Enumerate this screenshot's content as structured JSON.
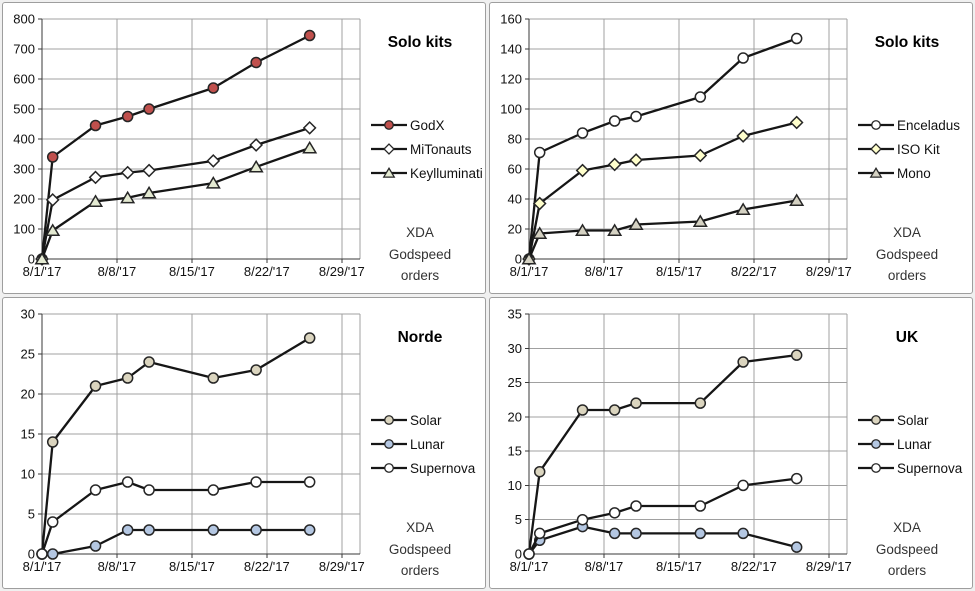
{
  "page": {
    "background": "#f0f0f0",
    "panel_background": "#ffffff",
    "panel_border": "#9e9e9e"
  },
  "style": {
    "gridline_color": "#a0a0a0",
    "axis_color": "#3a3a3a",
    "series_line_color": "#161616",
    "marker_outline_color": "#262626",
    "tick_label_color": "#111111"
  },
  "note": {
    "line1": "XDA",
    "line2": "Godspeed",
    "line3": "orders"
  },
  "chart_data": [
    {
      "type": "line",
      "title": "Solo kits",
      "annotation": "XDA Godspeed orders",
      "x_days": [
        1,
        2,
        6,
        9,
        11,
        17,
        21,
        26
      ],
      "x_axis": {
        "min": 1,
        "max": 30.7,
        "gridline_days": [
          8,
          15,
          22,
          29
        ],
        "tick_days": [
          1,
          8,
          15,
          22,
          29
        ],
        "tick_labels": [
          "8/1/'17",
          "8/8/'17",
          "8/15/'17",
          "8/22/'17",
          "8/29/'17"
        ]
      },
      "y_axis": {
        "min": 0,
        "max": 800,
        "step": 100
      },
      "series": [
        {
          "name": "GodX",
          "marker": "circle",
          "marker_fill": "#c0504d",
          "values": [
            0,
            340,
            445,
            475,
            500,
            570,
            655,
            745
          ]
        },
        {
          "name": "MiTonauts",
          "marker": "diamond",
          "marker_fill": "#ffffff",
          "values": [
            0,
            197,
            272,
            288,
            295,
            327,
            380,
            437
          ]
        },
        {
          "name": "Keylluminati",
          "marker": "triangle",
          "marker_fill": "#e4ead2",
          "values": [
            0,
            95,
            192,
            204,
            220,
            253,
            307,
            370
          ]
        }
      ]
    },
    {
      "type": "line",
      "title": "Solo kits",
      "annotation": "XDA Godspeed orders",
      "x_days": [
        1,
        2,
        6,
        9,
        11,
        17,
        21,
        26
      ],
      "x_axis": {
        "min": 1,
        "max": 30.7,
        "gridline_days": [
          8,
          15,
          22,
          29
        ],
        "tick_days": [
          1,
          8,
          15,
          22,
          29
        ],
        "tick_labels": [
          "8/1/'17",
          "8/8/'17",
          "8/15/'17",
          "8/22/'17",
          "8/29/'17"
        ]
      },
      "y_axis": {
        "min": 0,
        "max": 160,
        "step": 20
      },
      "series": [
        {
          "name": "Enceladus",
          "marker": "circle",
          "marker_fill": "#ffffff",
          "values": [
            0,
            71,
            84,
            92,
            95,
            108,
            134,
            147
          ]
        },
        {
          "name": "ISO Kit",
          "marker": "diamond",
          "marker_fill": "#ffffcc",
          "values": [
            0,
            37,
            59,
            63,
            66,
            69,
            82,
            91
          ]
        },
        {
          "name": "Mono",
          "marker": "triangle",
          "marker_fill": "#d5d2c3",
          "values": [
            0,
            17,
            19,
            19,
            23,
            25,
            33,
            39
          ]
        }
      ]
    },
    {
      "type": "line",
      "title": "Norde",
      "annotation": "XDA Godspeed orders",
      "x_days": [
        1,
        2,
        6,
        9,
        11,
        17,
        21,
        26
      ],
      "x_axis": {
        "min": 1,
        "max": 30.7,
        "gridline_days": [
          8,
          15,
          22,
          29
        ],
        "tick_days": [
          1,
          8,
          15,
          22,
          29
        ],
        "tick_labels": [
          "8/1/'17",
          "8/8/'17",
          "8/15/'17",
          "8/22/'17",
          "8/29/'17"
        ]
      },
      "y_axis": {
        "min": 0,
        "max": 30,
        "step": 5
      },
      "series": [
        {
          "name": "Solar",
          "marker": "circle",
          "marker_fill": "#dbd5bf",
          "values": [
            0,
            14,
            21,
            22,
            24,
            22,
            23,
            27
          ]
        },
        {
          "name": "Lunar",
          "marker": "circle",
          "marker_fill": "#b4c7e2",
          "values": [
            0,
            0,
            1,
            3,
            3,
            3,
            3,
            3
          ]
        },
        {
          "name": "Supernova",
          "marker": "circle",
          "marker_fill": "#ffffff",
          "values": [
            0,
            4,
            8,
            9,
            8,
            8,
            9,
            9
          ]
        }
      ]
    },
    {
      "type": "line",
      "title": "UK",
      "annotation": "XDA Godspeed orders",
      "x_days": [
        1,
        2,
        6,
        9,
        11,
        17,
        21,
        26
      ],
      "x_axis": {
        "min": 1,
        "max": 30.7,
        "gridline_days": [
          8,
          15,
          22,
          29
        ],
        "tick_days": [
          1,
          8,
          15,
          22,
          29
        ],
        "tick_labels": [
          "8/1/'17",
          "8/8/'17",
          "8/15/'17",
          "8/22/'17",
          "8/29/'17"
        ]
      },
      "y_axis": {
        "min": 0,
        "max": 35,
        "step": 5
      },
      "series": [
        {
          "name": "Solar",
          "marker": "circle",
          "marker_fill": "#dbd5bf",
          "values": [
            0,
            12,
            21,
            21,
            22,
            22,
            28,
            29
          ]
        },
        {
          "name": "Lunar",
          "marker": "circle",
          "marker_fill": "#b4c7e2",
          "values": [
            0,
            2,
            4,
            3,
            3,
            3,
            3,
            1
          ]
        },
        {
          "name": "Supernova",
          "marker": "circle",
          "marker_fill": "#ffffff",
          "values": [
            0,
            3,
            5,
            6,
            7,
            7,
            10,
            11
          ]
        }
      ]
    }
  ]
}
